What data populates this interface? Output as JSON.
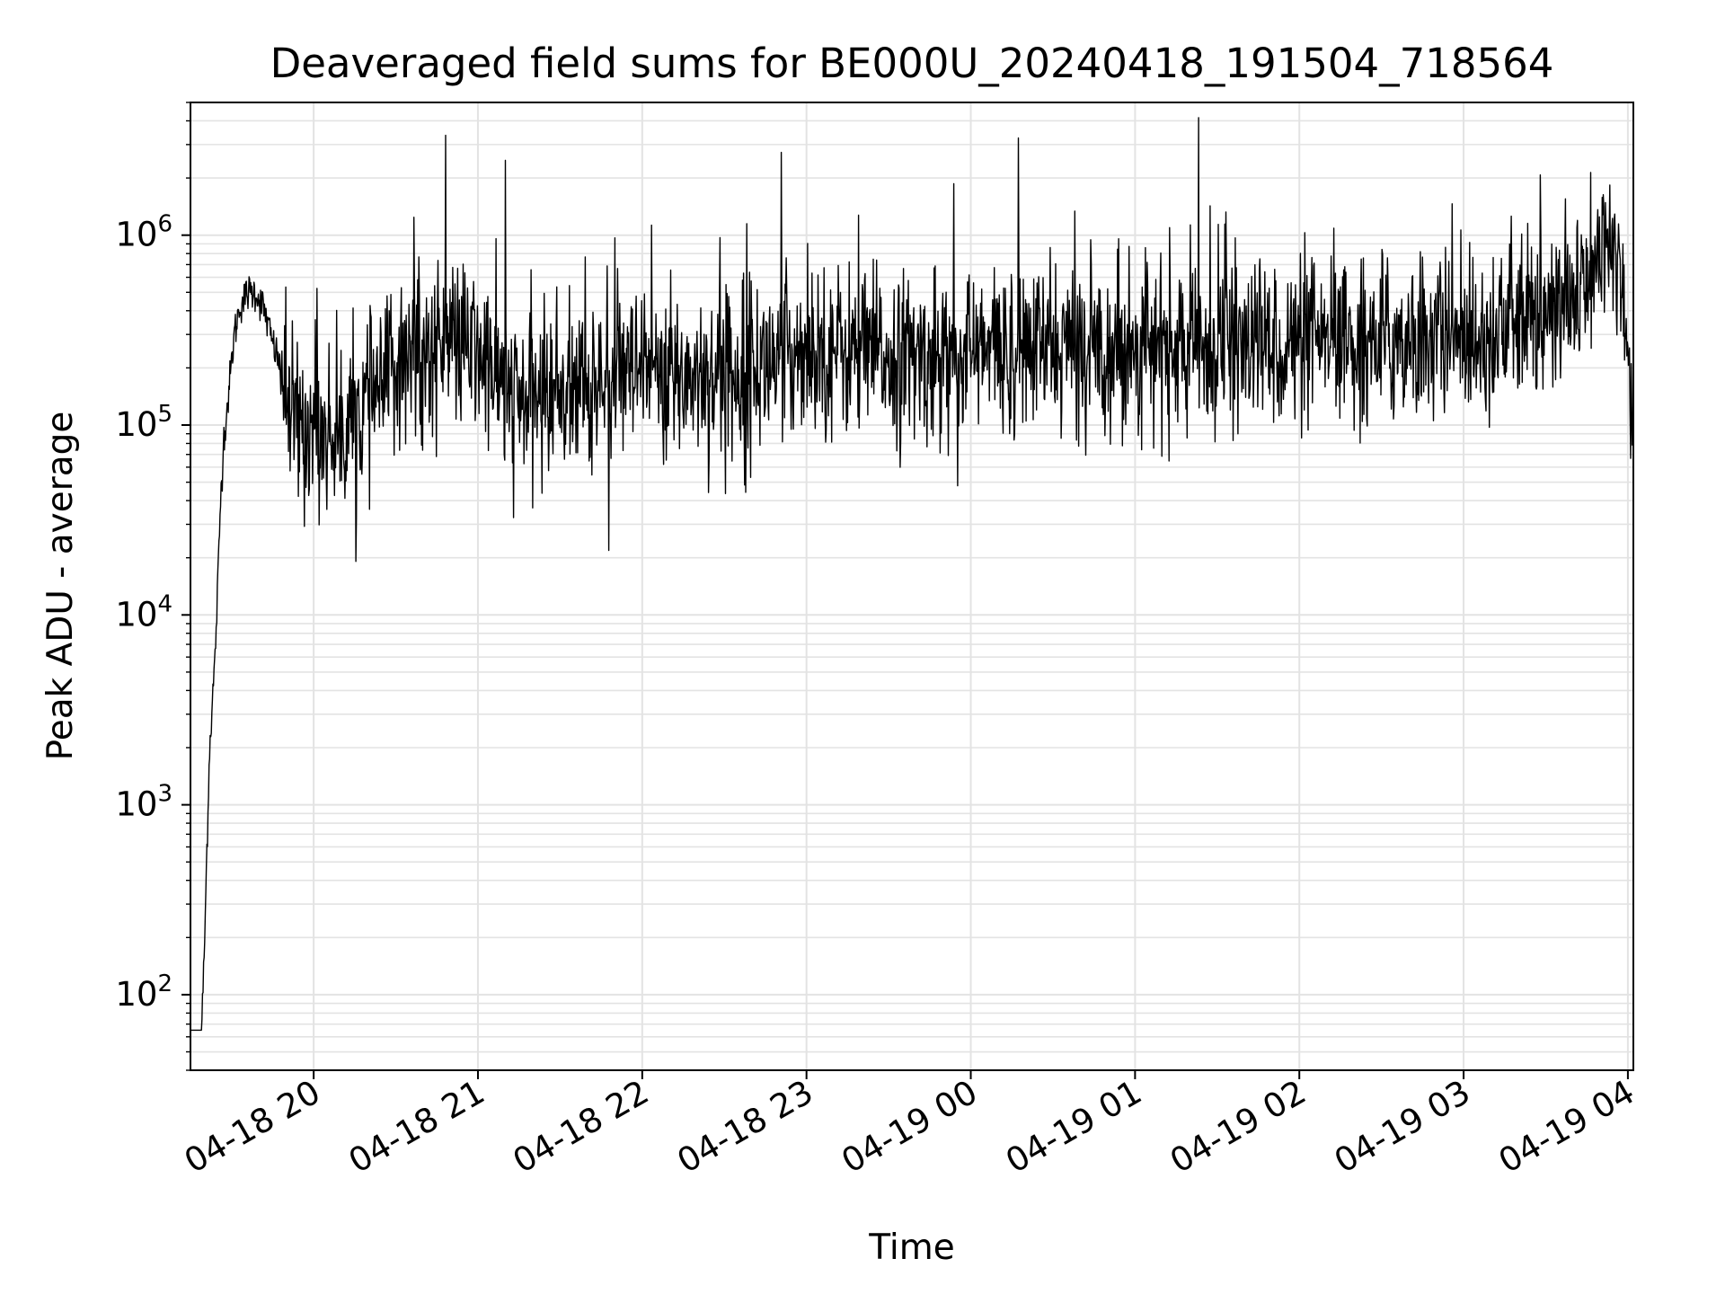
{
  "chart_data": {
    "type": "line",
    "title": "Deaveraged field sums for BE000U_20240418_191504_718564",
    "xlabel": "Time",
    "ylabel": "Peak ADU - average",
    "yscale": "log",
    "ylim": [
      40,
      5000000
    ],
    "xlim": [
      "04-18 19:15",
      "04-19 04:02"
    ],
    "grid": true,
    "line_color": "#000000",
    "x_ticks": [
      {
        "t": "04-18 20:00",
        "label": "04-18 20"
      },
      {
        "t": "04-18 21:00",
        "label": "04-18 21"
      },
      {
        "t": "04-18 22:00",
        "label": "04-18 22"
      },
      {
        "t": "04-18 23:00",
        "label": "04-18 23"
      },
      {
        "t": "04-19 00:00",
        "label": "04-19 00"
      },
      {
        "t": "04-19 01:00",
        "label": "04-19 01"
      },
      {
        "t": "04-19 02:00",
        "label": "04-19 02"
      },
      {
        "t": "04-19 03:00",
        "label": "04-19 03"
      },
      {
        "t": "04-19 04:00",
        "label": "04-19 04"
      }
    ],
    "y_ticks": [
      {
        "value": 100,
        "base": "10",
        "exp": "2"
      },
      {
        "value": 1000,
        "base": "10",
        "exp": "3"
      },
      {
        "value": 10000,
        "base": "10",
        "exp": "4"
      },
      {
        "value": 100000,
        "base": "10",
        "exp": "5"
      },
      {
        "value": 1000000,
        "base": "10",
        "exp": "6"
      }
    ],
    "series": [
      {
        "points": [
          [
            "04-18 19:15",
            65
          ],
          [
            "04-18 19:19",
            65
          ],
          [
            "04-18 19:20",
            150
          ],
          [
            "04-18 19:21",
            600
          ],
          [
            "04-18 19:22",
            2000
          ],
          [
            "04-18 19:23",
            3500
          ],
          [
            "04-18 19:24",
            6000
          ],
          [
            "04-18 19:25",
            15000
          ],
          [
            "04-18 19:26",
            40000
          ],
          [
            "04-18 19:27",
            80000
          ],
          [
            "04-18 19:29",
            150000
          ],
          [
            "04-18 19:31",
            300000
          ],
          [
            "04-18 19:33",
            420000
          ],
          [
            "04-18 19:36",
            500000
          ],
          [
            "04-18 19:39",
            500000
          ],
          [
            "04-18 19:42",
            400000
          ],
          [
            "04-18 19:45",
            270000
          ],
          [
            "04-18 19:48",
            200000
          ],
          [
            "04-18 19:51",
            110000
          ],
          [
            "04-18 19:55",
            100000
          ],
          [
            "04-18 20:00",
            100000
          ],
          [
            "04-18 20:05",
            90000
          ],
          [
            "04-18 20:10",
            95000
          ],
          [
            "04-18 20:15",
            110000
          ],
          [
            "04-18 20:20",
            130000
          ],
          [
            "04-18 20:25",
            150000
          ],
          [
            "04-18 20:30",
            200000
          ],
          [
            "04-18 20:35",
            250000
          ],
          [
            "04-18 20:40",
            230000
          ],
          [
            "04-18 20:45",
            260000
          ],
          [
            "04-18 20:50",
            280000
          ],
          [
            "04-18 20:55",
            260000
          ],
          [
            "04-18 21:00",
            230000
          ],
          [
            "04-18 21:05",
            200000
          ],
          [
            "04-18 21:10",
            150000
          ],
          [
            "04-18 21:15",
            130000
          ],
          [
            "04-18 21:20",
            140000
          ],
          [
            "04-18 21:25",
            150000
          ],
          [
            "04-18 21:30",
            160000
          ],
          [
            "04-18 21:35",
            150000
          ],
          [
            "04-18 21:40",
            155000
          ],
          [
            "04-18 21:45",
            165000
          ],
          [
            "04-18 21:50",
            170000
          ],
          [
            "04-18 21:55",
            175000
          ],
          [
            "04-18 22:00",
            175000
          ],
          [
            "04-18 22:10",
            180000
          ],
          [
            "04-18 22:20",
            185000
          ],
          [
            "04-18 22:30",
            190000
          ],
          [
            "04-18 22:40",
            200000
          ],
          [
            "04-18 22:50",
            220000
          ],
          [
            "04-18 23:00",
            260000
          ],
          [
            "04-18 23:10",
            250000
          ],
          [
            "04-18 23:20",
            240000
          ],
          [
            "04-18 23:30",
            230000
          ],
          [
            "04-18 23:40",
            220000
          ],
          [
            "04-18 23:50",
            230000
          ],
          [
            "04-19 00:00",
            240000
          ],
          [
            "04-19 00:15",
            250000
          ],
          [
            "04-19 00:30",
            255000
          ],
          [
            "04-19 00:45",
            260000
          ],
          [
            "04-19 01:00",
            255000
          ],
          [
            "04-19 01:15",
            250000
          ],
          [
            "04-19 01:30",
            255000
          ],
          [
            "04-19 01:45",
            260000
          ],
          [
            "04-19 02:00",
            260000
          ],
          [
            "04-19 02:15",
            265000
          ],
          [
            "04-19 02:30",
            275000
          ],
          [
            "04-19 02:45",
            290000
          ],
          [
            "04-19 03:00",
            300000
          ],
          [
            "04-19 03:10",
            320000
          ],
          [
            "04-19 03:20",
            340000
          ],
          [
            "04-19 03:30",
            360000
          ],
          [
            "04-19 03:40",
            450000
          ],
          [
            "04-19 03:50",
            700000
          ],
          [
            "04-19 03:55",
            900000
          ],
          [
            "04-19 03:58",
            600000
          ],
          [
            "04-19 04:00",
            300000
          ],
          [
            "04-19 04:02",
            70000
          ]
        ],
        "noise_start": "04-18 19:48",
        "noise_sigma_dex": 0.22,
        "noise_step_seconds": 12
      }
    ]
  }
}
